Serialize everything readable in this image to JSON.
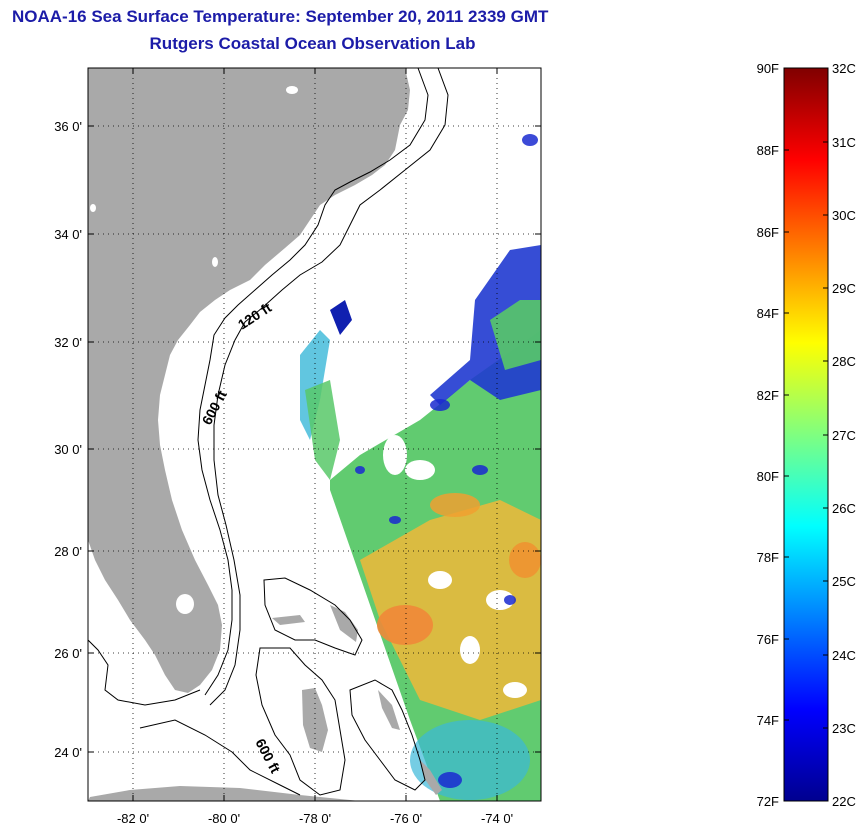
{
  "header": {
    "title_line1": "NOAA-16 Sea Surface Temperature:  September 20, 2011 2339 GMT",
    "title_line2": "Rutgers Coastal Ocean Observation Lab"
  },
  "map": {
    "lat_labels": [
      "36 0'",
      "34 0'",
      "32 0'",
      "30 0'",
      "28 0'",
      "26 0'",
      "24 0'"
    ],
    "lon_labels": [
      "-82 0'",
      "-80 0'",
      "-78 0'",
      "-76 0'",
      "-74 0'"
    ],
    "depth_labels": [
      "120 ft",
      "600 ft",
      "600 ft"
    ],
    "land_color": "#a9a9a9",
    "sea_color": "#ffffff"
  },
  "colorbar": {
    "fahrenheit_labels": [
      "90F",
      "88F",
      "86F",
      "84F",
      "82F",
      "80F",
      "78F",
      "76F",
      "74F",
      "72F"
    ],
    "celsius_labels": [
      "32C",
      "31C",
      "30C",
      "29C",
      "28C",
      "27C",
      "26C",
      "25C",
      "24C",
      "23C",
      "22C"
    ],
    "colormap": "jet",
    "range_celsius": [
      22,
      32
    ]
  }
}
